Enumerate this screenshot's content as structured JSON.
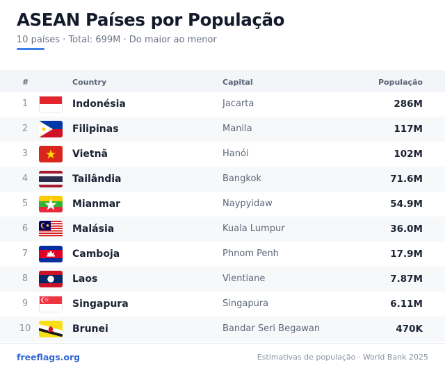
{
  "header": {
    "title": "ASEAN Países por População",
    "subtitle": "10 países · Total: 699M · Do maior ao menor"
  },
  "table": {
    "columns": {
      "rank": "#",
      "country": "Country",
      "capital": "Capital",
      "population": "População"
    },
    "rows": [
      {
        "rank": "1",
        "flag": "indonesia-flag",
        "country": "Indonésia",
        "capital": "Jacarta",
        "population": "286M"
      },
      {
        "rank": "2",
        "flag": "philippines-flag",
        "country": "Filipinas",
        "capital": "Manila",
        "population": "117M"
      },
      {
        "rank": "3",
        "flag": "vietnam-flag",
        "country": "Vietnã",
        "capital": "Hanói",
        "population": "102M"
      },
      {
        "rank": "4",
        "flag": "thailand-flag",
        "country": "Tailândia",
        "capital": "Bangkok",
        "population": "71.6M"
      },
      {
        "rank": "5",
        "flag": "myanmar-flag",
        "country": "Mianmar",
        "capital": "Naypyidaw",
        "population": "54.9M"
      },
      {
        "rank": "6",
        "flag": "malaysia-flag",
        "country": "Malásia",
        "capital": "Kuala Lumpur",
        "population": "36.0M"
      },
      {
        "rank": "7",
        "flag": "cambodia-flag",
        "country": "Camboja",
        "capital": "Phnom Penh",
        "population": "17.9M"
      },
      {
        "rank": "8",
        "flag": "laos-flag",
        "country": "Laos",
        "capital": "Vientiane",
        "population": "7.87M"
      },
      {
        "rank": "9",
        "flag": "singapore-flag",
        "country": "Singapura",
        "capital": "Singapura",
        "population": "6.11M"
      },
      {
        "rank": "10",
        "flag": "brunei-flag",
        "country": "Brunei",
        "capital": "Bandar Seri Begawan",
        "population": "470K"
      }
    ]
  },
  "footer": {
    "site": "freeflags.org",
    "source": "Estimativas de população · World Bank 2025"
  },
  "colors": {
    "accent": "#3f7de8",
    "link": "#3569d4",
    "header_bg": "#f3f5f8",
    "row_alt_bg": "#f6f8fa"
  }
}
